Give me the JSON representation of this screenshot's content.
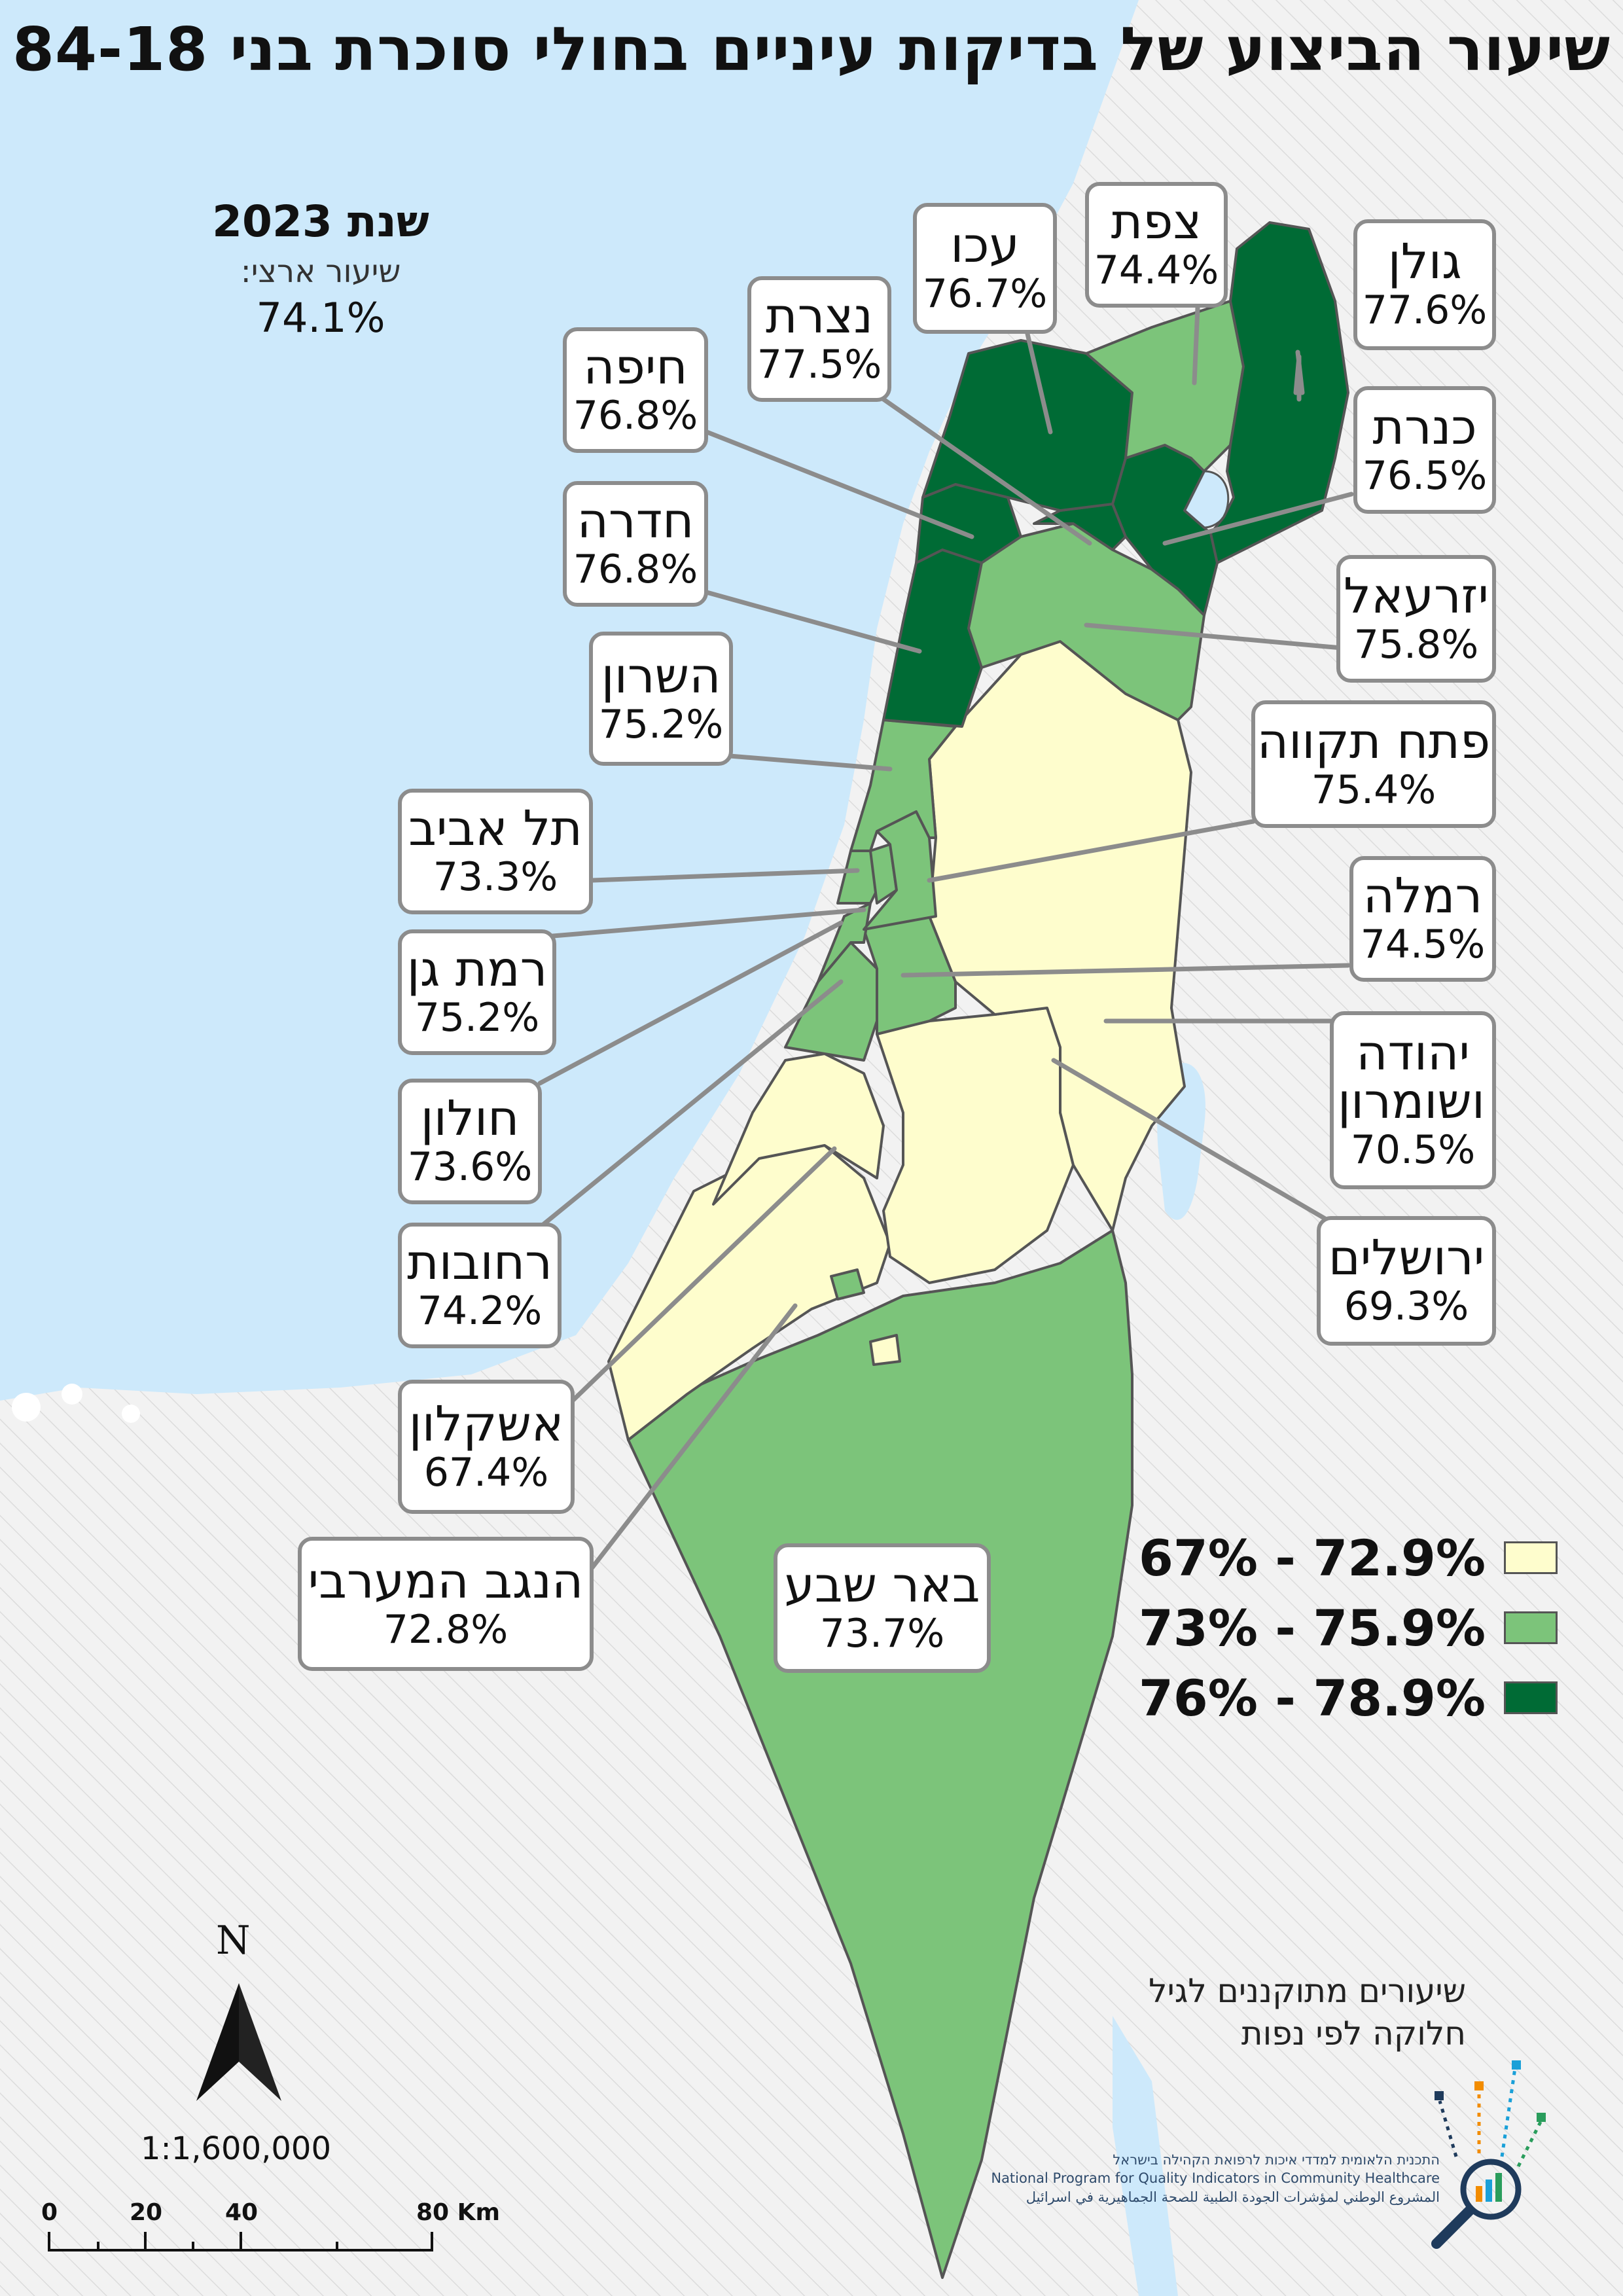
{
  "title": "שיעור הביצוע של בדיקות עיניים בחולי סוכרת בני 84-18",
  "year_title": "שנת 2023",
  "national_label": "שיעור ארצי:",
  "national_value": "74.1%",
  "colors": {
    "sea": "#cde9fb",
    "low": "#fefdcd",
    "mid": "#7cc47a",
    "high": "#006b35",
    "border": "#555555",
    "callout_border": "#8c8c8c",
    "hatch_bg": "#f2f2f2"
  },
  "legend": [
    {
      "label": "67% - 72.9%",
      "class": "low"
    },
    {
      "label": "73% - 75.9%",
      "class": "mid"
    },
    {
      "label": "76% - 78.9%",
      "class": "high"
    }
  ],
  "districts": [
    {
      "name": "גולן",
      "value": "77.6%",
      "class": "high"
    },
    {
      "name": "צפת",
      "value": "74.4%",
      "class": "mid"
    },
    {
      "name": "עכו",
      "value": "76.7%",
      "class": "high"
    },
    {
      "name": "נצרת",
      "value": "77.5%",
      "class": "high"
    },
    {
      "name": "חיפה",
      "value": "76.8%",
      "class": "high"
    },
    {
      "name": "כנרת",
      "value": "76.5%",
      "class": "high"
    },
    {
      "name": "חדרה",
      "value": "76.8%",
      "class": "high"
    },
    {
      "name": "יזרעאל",
      "value": "75.8%",
      "class": "mid"
    },
    {
      "name": "השרון",
      "value": "75.2%",
      "class": "mid"
    },
    {
      "name": "פתח תקווה",
      "value": "75.4%",
      "class": "mid"
    },
    {
      "name": "תל אביב",
      "value": "73.3%",
      "class": "mid"
    },
    {
      "name": "רמלה",
      "value": "74.5%",
      "class": "mid"
    },
    {
      "name": "רמת גן",
      "value": "75.2%",
      "class": "mid"
    },
    {
      "name": "יהודה ושומרון",
      "value": "70.5%",
      "class": "low"
    },
    {
      "name": "חולון",
      "value": "73.6%",
      "class": "mid"
    },
    {
      "name": "ירושלים",
      "value": "69.3%",
      "class": "low"
    },
    {
      "name": "רחובות",
      "value": "74.2%",
      "class": "mid"
    },
    {
      "name": "אשקלון",
      "value": "67.4%",
      "class": "low"
    },
    {
      "name": "הנגב המערבי",
      "value": "72.8%",
      "class": "low"
    },
    {
      "name": "באר שבע",
      "value": "73.7%",
      "class": "mid"
    }
  ],
  "note_line1": "שיעורים מתוקננים לגיל",
  "note_line2": "חלוקה לפי נפות",
  "org_line1": "התכנית הלאומית למדדי איכות לרפואת הקהילה בישראל",
  "org_line2": "National Program for Quality Indicators in Community Healthcare",
  "org_line3": "المشروع الوطني لمؤشرات الجودة الطبية للصحة الجماهيرية في اسرائيل",
  "north_label": "N",
  "scale_ratio": "1:1,600,000",
  "scale_ticks": [
    "0",
    "20",
    "40",
    "80 Km"
  ]
}
